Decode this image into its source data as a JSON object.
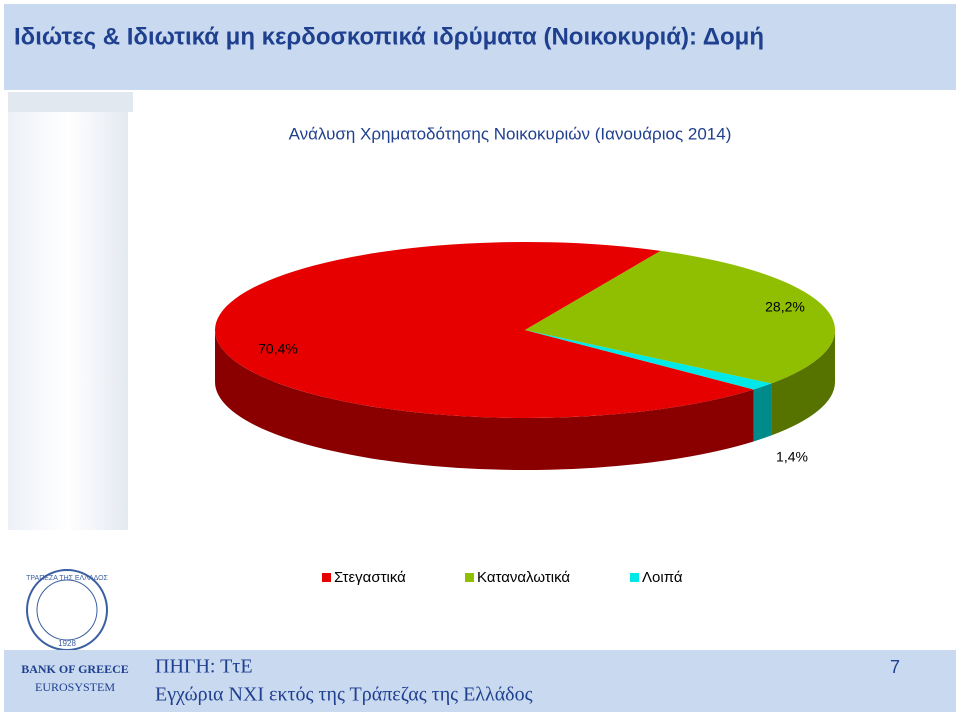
{
  "header": {
    "title": "Ιδιώτες & Ιδιωτικά μη κερδοσκοπικά ιδρύματα (Νοικοκυριά): Δομή"
  },
  "chart_data": {
    "type": "pie3d",
    "title": "Ανάλυση Χρηματοδότησης Νοικοκυριών (Ιανουάριος 2014)",
    "categories": [
      "Στεγαστικά",
      "Καταναλωτικά",
      "Λοιπά"
    ],
    "values": [
      70.4,
      28.2,
      1.4
    ],
    "value_labels": [
      "70,4%",
      "28,2%",
      "1,4%"
    ],
    "colors": [
      "#e60000",
      "#8fbf00",
      "#00e8e8"
    ],
    "legend": "bottom"
  },
  "logo": {
    "top": "ΤΡΑΠΕΖΑ ΤΗΣ ΕΛΛΑΔΟΣ",
    "year": "1928"
  },
  "footer": {
    "bank": "BANK OF GREECE",
    "system": "EUROSYSTEM",
    "source": "ΠΗΓΗ: ΤτΕ",
    "note": "Εγχώρια ΝΧΙ εκτός της Τράπεζας της Ελλάδος",
    "page": "7"
  }
}
